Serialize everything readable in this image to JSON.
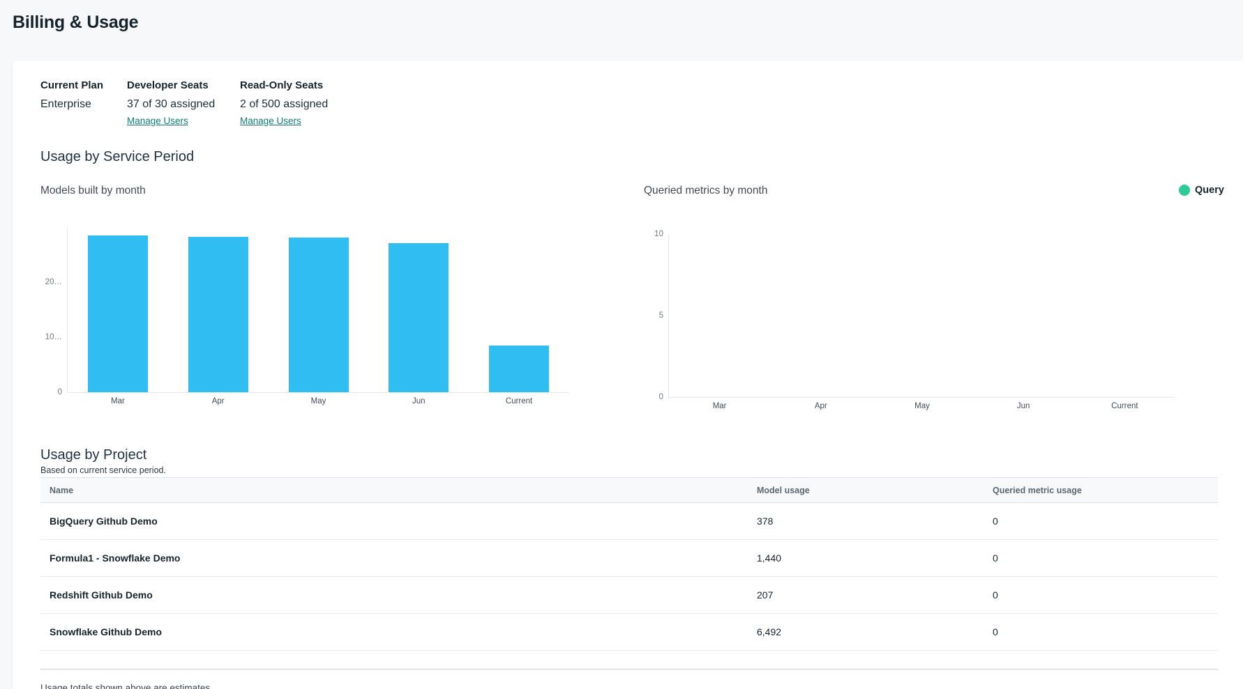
{
  "page": {
    "title": "Billing & Usage"
  },
  "plan_summary": {
    "current_plan": {
      "label": "Current Plan",
      "value": "Enterprise"
    },
    "developer_seats": {
      "label": "Developer Seats",
      "value": "37 of 30 assigned",
      "link_label": "Manage Users"
    },
    "read_only_seats": {
      "label": "Read-Only Seats",
      "value": "2 of 500 assigned",
      "link_label": "Manage Users"
    }
  },
  "usage_by_service_period": {
    "title": "Usage by Service Period"
  },
  "chart_data": [
    {
      "type": "bar",
      "title": "Models built by month",
      "categories": [
        "Mar",
        "Apr",
        "May",
        "Jun",
        "Current"
      ],
      "series": [
        {
          "name": "Models built",
          "color": "#30bef2",
          "values": [
            28500,
            28250,
            28100,
            27100,
            8517
          ]
        }
      ],
      "ylim": [
        0,
        30000
      ],
      "yticks": [
        {
          "value": 0,
          "label": "0"
        },
        {
          "value": 10000,
          "label": "10…"
        },
        {
          "value": 20000,
          "label": "20…"
        }
      ],
      "xlabel": "",
      "ylabel": "",
      "grid": false,
      "legend": false
    },
    {
      "type": "bar",
      "title": "Queried metrics by month",
      "categories": [
        "Mar",
        "Apr",
        "May",
        "Jun",
        "Current"
      ],
      "series": [
        {
          "name": "Query",
          "color": "#2ecc94",
          "values": [
            0,
            0,
            0,
            0,
            0
          ]
        }
      ],
      "ylim": [
        0,
        10
      ],
      "yticks": [
        {
          "value": 0,
          "label": "0"
        },
        {
          "value": 5,
          "label": "5"
        },
        {
          "value": 10,
          "label": "10"
        }
      ],
      "xlabel": "",
      "ylabel": "",
      "grid": false,
      "legend": true,
      "legend_position": "top-right"
    }
  ],
  "project_usage": {
    "title": "Usage by Project",
    "subtitle": "Based on current service period.",
    "columns": [
      "Name",
      "Model usage",
      "Queried metric usage"
    ],
    "rows": [
      {
        "name": "BigQuery Github Demo",
        "model_usage": "378",
        "queried_metric_usage": "0"
      },
      {
        "name": "Formula1 - Snowflake Demo",
        "model_usage": "1,440",
        "queried_metric_usage": "0"
      },
      {
        "name": "Redshift Github Demo",
        "model_usage": "207",
        "queried_metric_usage": "0"
      },
      {
        "name": "Snowflake Github Demo",
        "model_usage": "6,492",
        "queried_metric_usage": "0"
      }
    ]
  },
  "footer": {
    "note": "Usage totals shown above are estimates"
  },
  "colors": {
    "bar_blue": "#30bef2",
    "legend_green": "#2ecc94",
    "link_teal": "#0e7d73",
    "page_background": "#f7f8fa",
    "card_background": "#ffffff"
  }
}
